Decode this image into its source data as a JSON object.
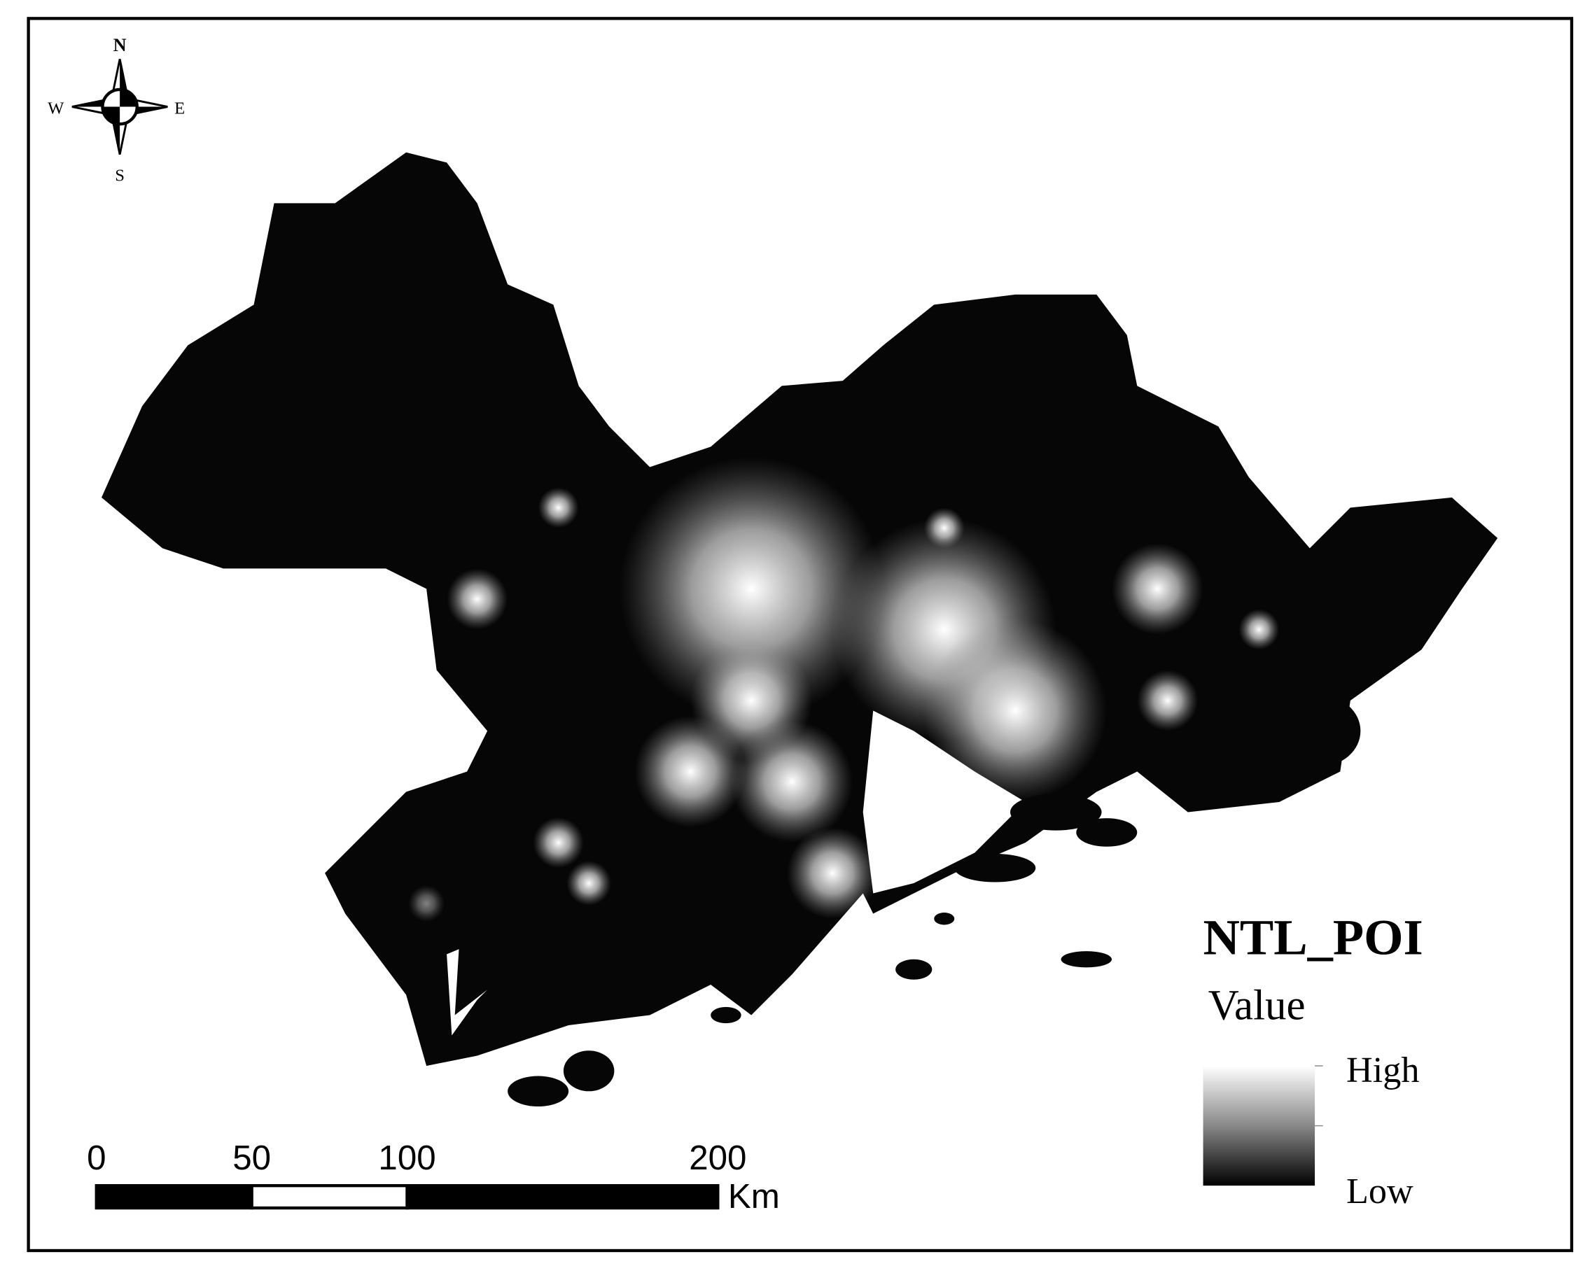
{
  "map": {
    "compass": {
      "n": "N",
      "s": "S",
      "w": "W",
      "e": "E"
    },
    "legend": {
      "title": "NTL_POI",
      "subtitle": "Value",
      "high": "High",
      "low": "Low"
    },
    "scale_bar": {
      "ticks": [
        0,
        50,
        100,
        200
      ],
      "unit": "Km"
    }
  }
}
